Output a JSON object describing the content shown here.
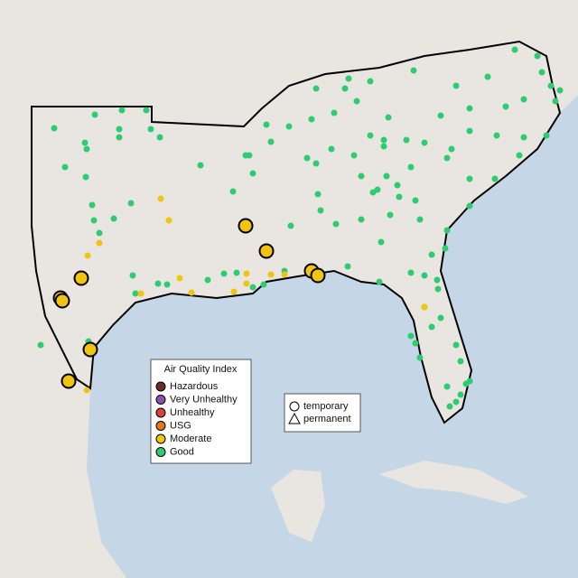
{
  "legend": {
    "title": "Air Quality Index",
    "items": [
      {
        "label": "Hazardous",
        "color": "#6b2a2a"
      },
      {
        "label": "Very Unhealthy",
        "color": "#8e4fb0"
      },
      {
        "label": "Unhealthy",
        "color": "#e0403a"
      },
      {
        "label": "USG",
        "color": "#e07a1c"
      },
      {
        "label": "Moderate",
        "color": "#f1c40f"
      },
      {
        "label": "Good",
        "color": "#2ecc71"
      }
    ]
  },
  "shape_legend": {
    "items": [
      "temporary",
      "permanent"
    ]
  }
}
